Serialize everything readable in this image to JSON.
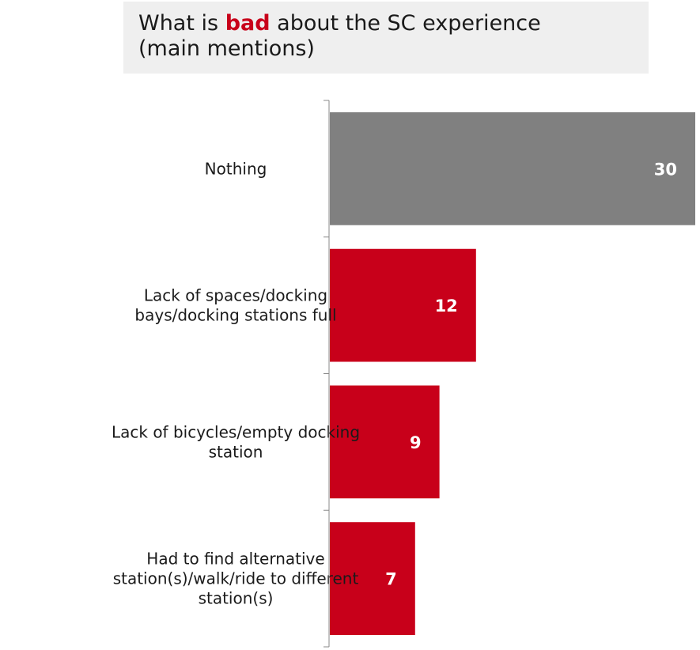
{
  "title": {
    "before": "What is ",
    "highlight": "bad",
    "after": " about the SC experience",
    "line2": "(main mentions)"
  },
  "colors": {
    "highlight": "#c8001a",
    "bar_default": "#c8001a",
    "bar_nothing": "#808080",
    "axis": "#888888"
  },
  "chart_data": {
    "type": "bar",
    "orientation": "horizontal",
    "title": "What is bad about the SC experience (main mentions)",
    "categories": [
      [
        "Nothing"
      ],
      [
        "Lack of spaces/docking",
        "bays/docking stations full"
      ],
      [
        "Lack of bicycles/empty docking",
        "station"
      ],
      [
        "Had to find alternative",
        "station(s)/walk/ride to different",
        "station(s)"
      ]
    ],
    "values": [
      30,
      12,
      9,
      7
    ],
    "bar_colors": [
      "#808080",
      "#c8001a",
      "#c8001a",
      "#c8001a"
    ],
    "xlim": [
      0,
      30
    ],
    "grid": false,
    "legend": "none",
    "xlabel": "",
    "ylabel": ""
  }
}
